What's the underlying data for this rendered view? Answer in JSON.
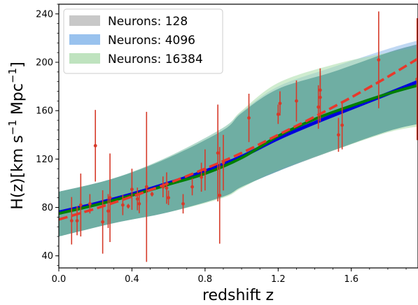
{
  "chart_data": {
    "type": "line",
    "xlabel": "redshift z",
    "ylabel_parts": [
      "H(z)[km s",
      "−1",
      " Mpc",
      "−1",
      "]"
    ],
    "xlim": [
      0.0,
      1.965
    ],
    "ylim": [
      30,
      248
    ],
    "xticks": [
      0.0,
      0.4,
      0.8,
      1.2,
      1.6
    ],
    "xtick_labels": [
      "0.0",
      "0.4",
      "0.8",
      "1.2",
      "1.6"
    ],
    "yticks": [
      40,
      80,
      120,
      160,
      200,
      240
    ],
    "ytick_labels": [
      "40",
      "80",
      "120",
      "160",
      "200",
      "240"
    ],
    "legend_position": "top-left",
    "legend": [
      {
        "label": "Neurons: 128",
        "color": "#c8c8c8"
      },
      {
        "label": "Neurons: 4096",
        "color": "#99c2ee"
      },
      {
        "label": "Neurons: 16384",
        "color": "#bfe3bf"
      }
    ],
    "bands": [
      {
        "name": "Neurons: 128",
        "color": "#b4b4b4",
        "x": [
          0.0,
          0.3,
          0.6,
          0.9,
          1.0,
          1.2,
          1.5,
          1.8,
          1.965
        ],
        "lower": [
          56,
          67,
          76,
          89,
          97,
          110,
          127,
          143,
          149
        ],
        "upper": [
          93,
          104,
          121,
          144,
          158,
          178,
          192,
          208,
          215
        ]
      },
      {
        "name": "Neurons: 4096",
        "color": "#8cb8ea",
        "x": [
          0.0,
          0.3,
          0.6,
          0.9,
          1.0,
          1.2,
          1.5,
          1.8,
          1.965
        ],
        "lower": [
          56,
          67,
          76,
          89,
          97,
          110,
          128,
          143,
          149
        ],
        "upper": [
          93,
          104,
          122,
          146,
          159,
          180,
          196,
          211,
          218
        ]
      },
      {
        "name": "Neurons: 16384",
        "color": "#a8dca8",
        "x": [
          0.0,
          0.3,
          0.6,
          0.9,
          1.0,
          1.2,
          1.5,
          1.8,
          1.965
        ],
        "lower": [
          56,
          67,
          76,
          88,
          96,
          111,
          127,
          142,
          147
        ],
        "upper": [
          93,
          104,
          122,
          146,
          160,
          183,
          198,
          208,
          212
        ]
      }
    ],
    "mean_lines": [
      {
        "color": "#0000dd",
        "x": [
          0.0,
          0.2,
          0.4,
          0.6,
          0.8,
          1.0,
          1.2,
          1.4,
          1.6,
          1.8,
          1.965
        ],
        "y": [
          76,
          83,
          91,
          100,
          110,
          122,
          137,
          150,
          162,
          174,
          184
        ]
      },
      {
        "color": "#008000",
        "x": [
          0.0,
          0.2,
          0.4,
          0.6,
          0.8,
          1.0,
          1.2,
          1.4,
          1.6,
          1.8,
          1.965
        ],
        "y": [
          75,
          82,
          90,
          99,
          108,
          121,
          139,
          153,
          164,
          174,
          181
        ]
      }
    ],
    "fit_line": {
      "color": "#e8382b",
      "x": [
        0.0,
        0.2,
        0.4,
        0.6,
        0.8,
        1.0,
        1.2,
        1.4,
        1.6,
        1.8,
        1.965
      ],
      "y": [
        70,
        79,
        89,
        100,
        112,
        125,
        140,
        155,
        171,
        188,
        203
      ]
    },
    "points": {
      "color": "#d63b2a",
      "x": [
        0.07,
        0.1,
        0.12,
        0.17,
        0.2,
        0.24,
        0.27,
        0.28,
        0.35,
        0.38,
        0.4,
        0.43,
        0.44,
        0.48,
        0.48,
        0.51,
        0.57,
        0.59,
        0.6,
        0.68,
        0.73,
        0.78,
        0.8,
        0.87,
        0.88,
        0.9,
        1.04,
        1.3,
        1.43,
        1.53,
        1.75,
        1.96,
        1.2,
        1.21,
        1.42,
        1.43,
        1.55
      ],
      "y": [
        69,
        69,
        82,
        83,
        131,
        68,
        77,
        88,
        82,
        81,
        95,
        87,
        83,
        97,
        97,
        91,
        97,
        96,
        88,
        83,
        97,
        105,
        111,
        125,
        90,
        117,
        154,
        168,
        177,
        140,
        202,
        186,
        157,
        166,
        163,
        171,
        148
      ],
      "err": [
        19.6,
        12,
        26,
        8,
        29.6,
        26.2,
        14,
        36.6,
        8.4,
        1.9,
        17,
        9.4,
        7.8,
        13,
        62,
        1.9,
        8.6,
        13,
        6,
        8,
        7,
        12,
        17,
        40,
        40,
        23,
        20,
        17,
        18,
        14,
        40,
        50.4,
        8,
        10,
        18,
        20,
        20
      ]
    }
  }
}
